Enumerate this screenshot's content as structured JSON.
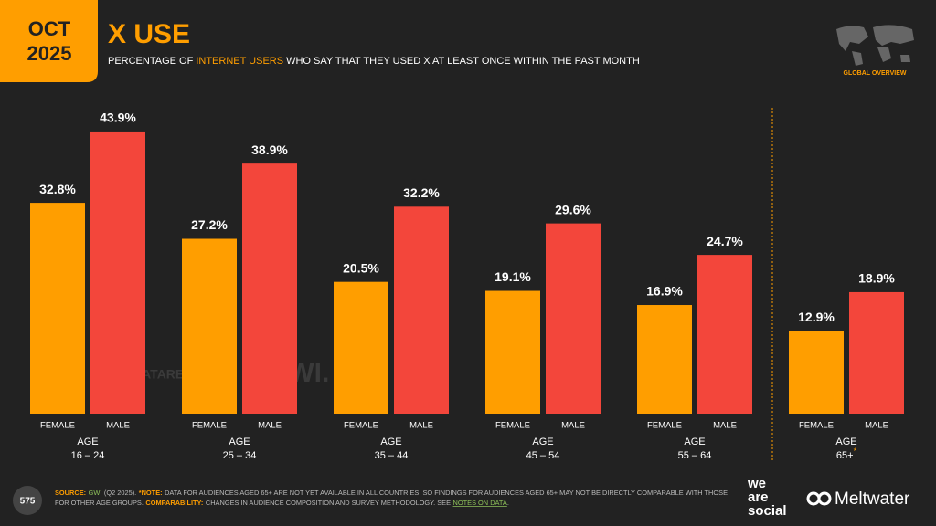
{
  "header": {
    "month": "OCT",
    "year": "2025",
    "title": "X USE",
    "subtitle": [
      "PERCENTAGE OF",
      "INTERNET USERS",
      "WHO SAY THAT THEY USED X AT LEAST ONCE WITHIN THE PAST MONTH"
    ],
    "section": "GLOBAL OVERVIEW"
  },
  "chart_data": {
    "type": "bar",
    "category_label": "AGE",
    "categories": [
      "16 – 24",
      "25 – 34",
      "35 – 44",
      "45 – 54",
      "55 – 64",
      "65+"
    ],
    "category_notes": [
      null,
      null,
      null,
      null,
      null,
      "*"
    ],
    "series": [
      {
        "name": "FEMALE",
        "color": "#ff9e00",
        "values": [
          32.8,
          27.2,
          20.5,
          19.1,
          16.9,
          12.9
        ],
        "value_labels": [
          "32.8%",
          "27.2%",
          "20.5%",
          "19.1%",
          "16.9%",
          "12.9%"
        ]
      },
      {
        "name": "MALE",
        "color": "#f3463b",
        "values": [
          43.9,
          38.9,
          32.2,
          29.6,
          24.7,
          18.9
        ],
        "value_labels": [
          "43.9%",
          "38.9%",
          "32.2%",
          "29.6%",
          "24.7%",
          "18.9%"
        ]
      }
    ]
  },
  "watermark": [
    "DATAREPORTAL",
    "GWI."
  ],
  "footer": {
    "page": "575",
    "lines": [
      [
        "SOURCE:",
        "GWI",
        "(Q2 2025).",
        "*NOTE:",
        "DATA FOR AUDIENCES AGED 65+ ARE NOT YET AVAILABLE IN ALL COUNTRIES; SO FINDINGS FOR AUDIENCES AGED 65+ MAY NOT BE DIRECTLY COMPARABLE WITH THOSE"
      ],
      [
        "FOR OTHER AGE GROUPS.",
        "COMPARABILITY:",
        "CHANGES IN AUDIENCE COMPOSITION AND SURVEY METHODOLOGY. SEE",
        "NOTES ON DATA",
        "."
      ]
    ]
  },
  "logos": {
    "we_are_social": [
      "we",
      "are",
      "social"
    ],
    "meltwater": "Meltwater"
  }
}
